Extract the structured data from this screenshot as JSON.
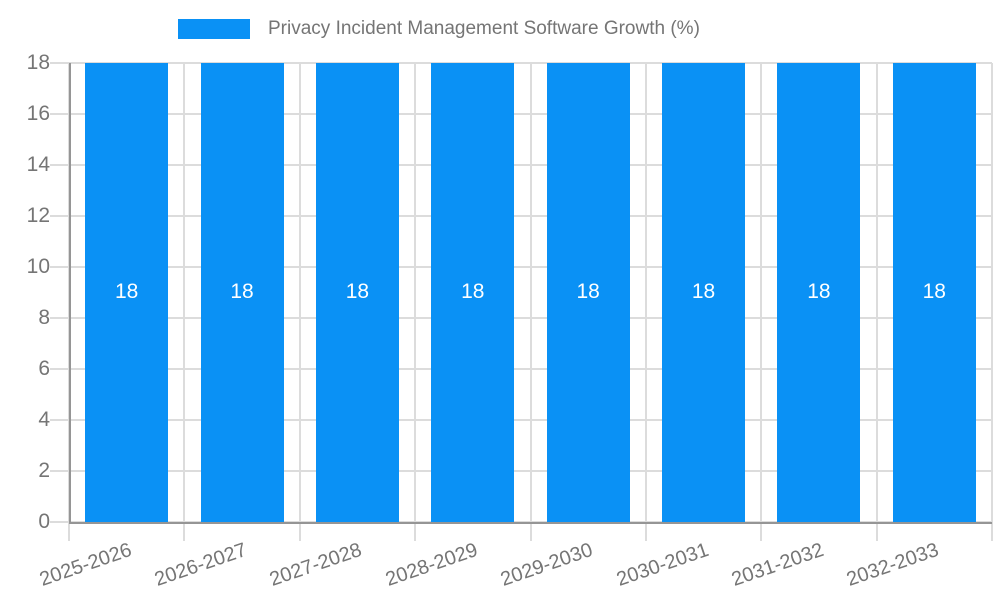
{
  "chart_data": {
    "type": "bar",
    "title": "Privacy Incident Management Software Growth (%)",
    "categories": [
      "2025-2026",
      "2026-2027",
      "2027-2028",
      "2028-2029",
      "2029-2030",
      "2030-2031",
      "2031-2032",
      "2032-2033"
    ],
    "values": [
      18,
      18,
      18,
      18,
      18,
      18,
      18,
      18
    ],
    "value_labels": [
      "18",
      "18",
      "18",
      "18",
      "18",
      "18",
      "18",
      "18"
    ],
    "xlabel": "",
    "ylabel": "",
    "ylim": [
      0,
      18
    ],
    "yticks": [
      0,
      2,
      4,
      6,
      8,
      10,
      12,
      14,
      16,
      18
    ],
    "grid": true,
    "legend_position": "top",
    "x_tick_rotation_deg": -19,
    "colors": {
      "bar": "#0a91f5",
      "grid": "#dcdcdc",
      "axis": "#959595",
      "tick_label": "#757575",
      "value_label": "#ffffff",
      "background": "#ffffff"
    }
  }
}
